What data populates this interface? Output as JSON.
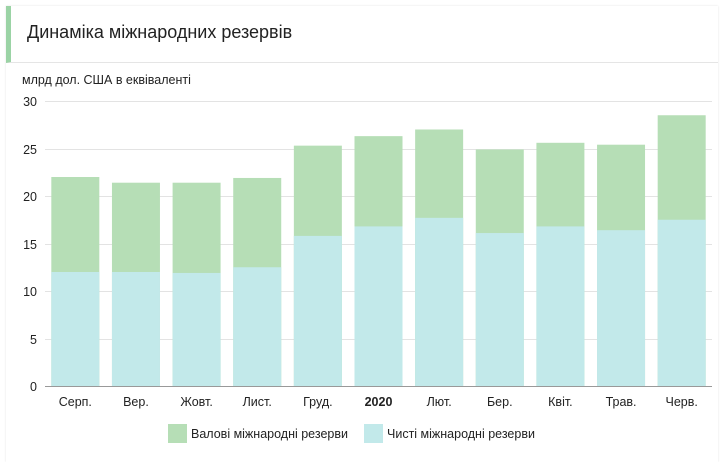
{
  "header": {
    "title": "Динаміка міжнародних резервів"
  },
  "chart_data": {
    "type": "bar",
    "stacked": false,
    "overlap": true,
    "title": "",
    "ylabel": "млрд дол. США в еквіваленті",
    "xlabel": "",
    "ylim": [
      0,
      30
    ],
    "yticks": [
      0,
      5,
      10,
      15,
      20,
      25,
      30
    ],
    "grid": true,
    "legend_position": "bottom",
    "categories": [
      "Серп.",
      "Вер.",
      "Жовт.",
      "Лист.",
      "Груд.",
      "2020",
      "Лют.",
      "Бер.",
      "Квіт.",
      "Трав.",
      "Черв."
    ],
    "bold_categories": [
      "2020"
    ],
    "series": [
      {
        "name": "Валові міжнародні резерви",
        "color": "#b6deb6",
        "values": [
          22.0,
          21.4,
          21.4,
          21.9,
          25.3,
          26.3,
          27.0,
          24.9,
          25.6,
          25.4,
          28.5
        ]
      },
      {
        "name": "Чисті міжнародні резерви",
        "color": "#c2e9ea",
        "values": [
          12.0,
          12.0,
          11.9,
          12.5,
          15.8,
          16.8,
          17.7,
          16.1,
          16.8,
          16.4,
          17.5
        ]
      }
    ]
  }
}
